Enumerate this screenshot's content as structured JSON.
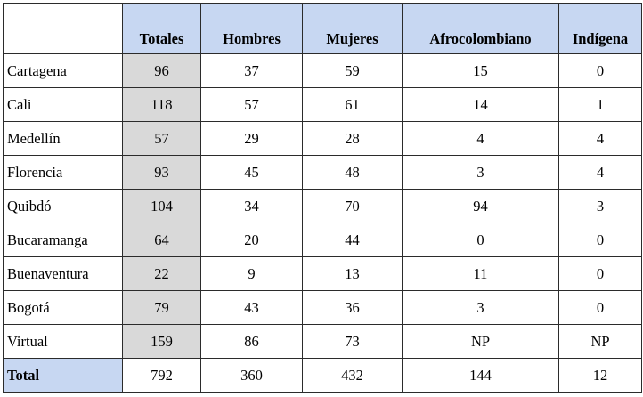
{
  "headers": [
    "",
    "Totales",
    "Hombres",
    "Mujeres",
    "Afrocolombiano",
    "Indígena"
  ],
  "rows": [
    {
      "city": "Cartagena",
      "totales": "96",
      "hombres": "37",
      "mujeres": "59",
      "afro": "15",
      "indigena": "0"
    },
    {
      "city": "Cali",
      "totales": "118",
      "hombres": "57",
      "mujeres": "61",
      "afro": "14",
      "indigena": "1"
    },
    {
      "city": "Medellín",
      "totales": "57",
      "hombres": "29",
      "mujeres": "28",
      "afro": "4",
      "indigena": "4"
    },
    {
      "city": "Florencia",
      "totales": "93",
      "hombres": "45",
      "mujeres": "48",
      "afro": "3",
      "indigena": "4"
    },
    {
      "city": "Quibdó",
      "totales": "104",
      "hombres": "34",
      "mujeres": "70",
      "afro": "94",
      "indigena": "3"
    },
    {
      "city": "Bucaramanga",
      "totales": "64",
      "hombres": "20",
      "mujeres": "44",
      "afro": "0",
      "indigena": "0"
    },
    {
      "city": "Buenaventura",
      "totales": "22",
      "hombres": "9",
      "mujeres": "13",
      "afro": "11",
      "indigena": "0"
    },
    {
      "city": "Bogotá",
      "totales": "79",
      "hombres": "43",
      "mujeres": "36",
      "afro": "3",
      "indigena": "0"
    },
    {
      "city": "Virtual",
      "totales": "159",
      "hombres": "86",
      "mujeres": "73",
      "afro": "NP",
      "indigena": "NP"
    }
  ],
  "total": {
    "city": "Total",
    "totales": "792",
    "hombres": "360",
    "mujeres": "432",
    "afro": "144",
    "indigena": "12"
  },
  "colors": {
    "header_bg": "#c7d7f2",
    "totales_bg": "#d9d9d9",
    "border": "#2b2b2b"
  }
}
